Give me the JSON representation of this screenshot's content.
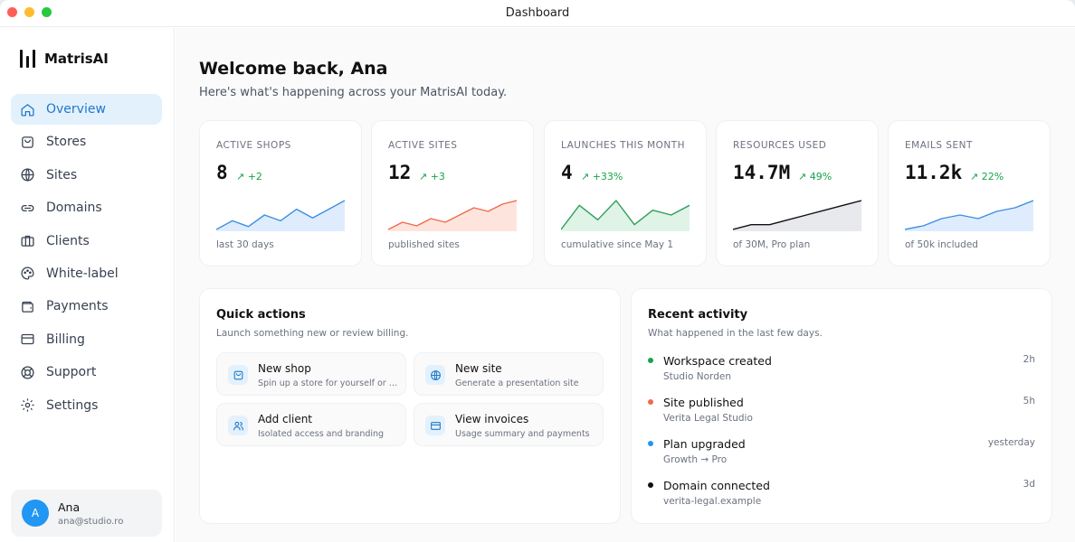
{
  "window": {
    "title": "Dashboard"
  },
  "brand": {
    "name": "MatrisAI"
  },
  "sidebar": {
    "items": [
      {
        "label": "Overview",
        "icon": "home-icon",
        "active": true
      },
      {
        "label": "Stores",
        "icon": "store-bag-icon"
      },
      {
        "label": "Sites",
        "icon": "globe-icon"
      },
      {
        "label": "Domains",
        "icon": "link-icon"
      },
      {
        "label": "Clients",
        "icon": "briefcase-icon"
      },
      {
        "label": "White-label",
        "icon": "palette-icon"
      },
      {
        "label": "Payments",
        "icon": "wallet-icon"
      },
      {
        "label": "Billing",
        "icon": "credit-card-icon"
      },
      {
        "label": "Support",
        "icon": "lifebuoy-icon"
      },
      {
        "label": "Settings",
        "icon": "gear-icon"
      }
    ]
  },
  "user": {
    "initial": "A",
    "name": "Ana",
    "email": "ana@studio.ro"
  },
  "header": {
    "welcome": "Welcome back, Ana",
    "subtitle": "Here's what's happening across your MatrisAI today."
  },
  "stats": [
    {
      "label": "ACTIVE SHOPS",
      "value": "8",
      "delta": "↗ +2",
      "foot": "last 30 days",
      "color": "#3b8fe0",
      "fill": "#dbeafe",
      "spark": [
        2,
        5,
        3,
        7,
        5,
        9,
        6,
        9,
        12
      ]
    },
    {
      "label": "ACTIVE SITES",
      "value": "12",
      "delta": "↗ +3",
      "foot": "published sites",
      "color": "#f06a4a",
      "fill": "#fde2da",
      "spark": [
        2,
        4,
        3,
        5,
        4,
        6,
        8,
        7,
        9,
        10
      ]
    },
    {
      "label": "LAUNCHES THIS MONTH",
      "value": "4",
      "delta": "↗ +33%",
      "foot": "cumulative since May 1",
      "color": "#2f9e5b",
      "fill": "#dcf2e4",
      "spark": [
        1,
        6,
        3,
        7,
        2,
        5,
        4,
        6
      ]
    },
    {
      "label": "RESOURCES USED",
      "value": "14.7M",
      "delta": "↗ 49%",
      "foot": "of 30M, Pro plan",
      "color": "#111111",
      "fill": "#e5e7eb",
      "spark": [
        1,
        2,
        2,
        3,
        4,
        5,
        6,
        7
      ]
    },
    {
      "label": "EMAILS SENT",
      "value": "11.2k",
      "delta": "↗ 22%",
      "foot": "of 50k included",
      "color": "#3b8fe0",
      "fill": "#dbeafe",
      "spark": [
        1,
        2,
        4,
        5,
        4,
        6,
        7,
        9
      ]
    }
  ],
  "quick_actions": {
    "title": "Quick actions",
    "subtitle": "Launch something new or review billing.",
    "items": [
      {
        "title": "New shop",
        "desc": "Spin up a store for yourself or a client",
        "icon": "store-bag-icon"
      },
      {
        "title": "New site",
        "desc": "Generate a presentation site",
        "icon": "globe-icon"
      },
      {
        "title": "Add client",
        "desc": "Isolated access and branding",
        "icon": "users-icon"
      },
      {
        "title": "View invoices",
        "desc": "Usage summary and payments",
        "icon": "credit-card-icon"
      }
    ]
  },
  "recent_activity": {
    "title": "Recent activity",
    "subtitle": "What happened in the last few days.",
    "items": [
      {
        "title": "Workspace created",
        "sub": "Studio Norden",
        "time": "2h",
        "color": "#16a34a"
      },
      {
        "title": "Site published",
        "sub": "Verita Legal Studio",
        "time": "5h",
        "color": "#f06a4a"
      },
      {
        "title": "Plan upgraded",
        "sub": "Growth → Pro",
        "time": "yesterday",
        "color": "#2196f3"
      },
      {
        "title": "Domain connected",
        "sub": "verita-legal.example",
        "time": "3d",
        "color": "#111111"
      }
    ]
  }
}
